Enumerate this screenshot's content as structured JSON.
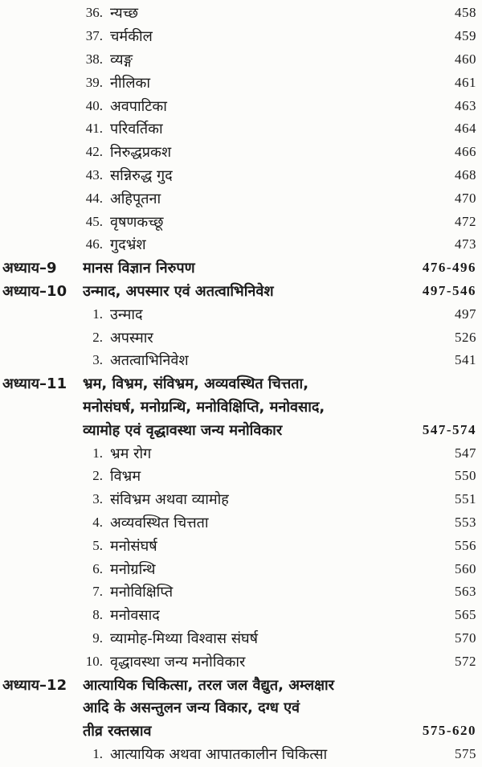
{
  "document": {
    "kind": "book-table-of-contents",
    "language": "Hindi (Devanagari)",
    "colors": {
      "background": "#fcfcfa",
      "text": "#1b1b1b"
    },
    "toc": {
      "rows": [
        {
          "type": "item",
          "num": "36.",
          "title": "न्यच्छ",
          "page": "458"
        },
        {
          "type": "item",
          "num": "37.",
          "title": "चर्मकील",
          "page": "459"
        },
        {
          "type": "item",
          "num": "38.",
          "title": "व्यङ्ग",
          "page": "460"
        },
        {
          "type": "item",
          "num": "39.",
          "title": "नीलिका",
          "page": "461"
        },
        {
          "type": "item",
          "num": "40.",
          "title": "अवपाटिका",
          "page": "463"
        },
        {
          "type": "item",
          "num": "41.",
          "title": "परिवर्तिका",
          "page": "464"
        },
        {
          "type": "item",
          "num": "42.",
          "title": "निरुद्धप्रकश",
          "page": "466"
        },
        {
          "type": "item",
          "num": "43.",
          "title": "सन्निरुद्ध गुद",
          "page": "468"
        },
        {
          "type": "item",
          "num": "44.",
          "title": "अहिपूतना",
          "page": "470"
        },
        {
          "type": "item",
          "num": "45.",
          "title": "वृषणकच्छू",
          "page": "472"
        },
        {
          "type": "item",
          "num": "46.",
          "title": "गुदभ्रंश",
          "page": "473"
        },
        {
          "type": "chapter",
          "label": "अध्याय–9",
          "title": "मानस विज्ञान निरुपण",
          "pages": "476-496"
        },
        {
          "type": "chapter",
          "label": "अध्याय–10",
          "title": "उन्माद, अपस्मार एवं अतत्वाभिनिवेश",
          "pages": "497-546"
        },
        {
          "type": "item",
          "num": "1.",
          "title": "उन्माद",
          "page": "497"
        },
        {
          "type": "item",
          "num": "2.",
          "title": "अपस्मार",
          "page": "526"
        },
        {
          "type": "item",
          "num": "3.",
          "title": "अतत्वाभिनिवेश",
          "page": "541"
        },
        {
          "type": "chapter",
          "label": "अध्याय–11",
          "title": "भ्रम, विभ्रम, संविभ्रम, अव्यवस्थित चित्तता,",
          "pages": ""
        },
        {
          "type": "chapter_cont",
          "title": "मनोसंघर्ष, मनोग्रन्थि, मनोविक्षिप्ति, मनोवसाद,",
          "pages": ""
        },
        {
          "type": "chapter_cont",
          "title": "व्यामोह एवं वृद्धावस्था जन्य मनोविकार",
          "pages": "547-574"
        },
        {
          "type": "item",
          "num": "1.",
          "title": "भ्रम रोग",
          "page": "547"
        },
        {
          "type": "item",
          "num": "2.",
          "title": "विभ्रम",
          "page": "550"
        },
        {
          "type": "item",
          "num": "3.",
          "title": "संविभ्रम अथवा व्यामोह",
          "page": "551"
        },
        {
          "type": "item",
          "num": "4.",
          "title": "अव्यवस्थित चित्तता",
          "page": "553"
        },
        {
          "type": "item",
          "num": "5.",
          "title": "मनोसंघर्ष",
          "page": "556"
        },
        {
          "type": "item",
          "num": "6.",
          "title": "मनोग्रन्थि",
          "page": "560"
        },
        {
          "type": "item",
          "num": "7.",
          "title": "मनोविक्षिप्ति",
          "page": "563"
        },
        {
          "type": "item",
          "num": "8.",
          "title": "मनोवसाद",
          "page": "565"
        },
        {
          "type": "item",
          "num": "9.",
          "title": "व्यामोह-मिथ्या विश्वास संघर्ष",
          "page": "570"
        },
        {
          "type": "item",
          "num": "10.",
          "title": "वृद्धावस्था जन्य मनोविकार",
          "page": "572"
        },
        {
          "type": "chapter",
          "label": "अध्याय–12",
          "title": "आत्यायिक चिकित्सा, तरल जल वैद्युत, अम्लक्षार",
          "pages": ""
        },
        {
          "type": "chapter_cont",
          "title": "आदि के असन्तुलन जन्य विकार, दग्ध एवं",
          "pages": ""
        },
        {
          "type": "chapter_cont",
          "title": "तीव्र रक्तस्राव",
          "pages": "575-620"
        },
        {
          "type": "item",
          "num": "1.",
          "title": "आत्यायिक अथवा आपातकालीन चिकित्सा",
          "page": "575"
        }
      ]
    }
  }
}
